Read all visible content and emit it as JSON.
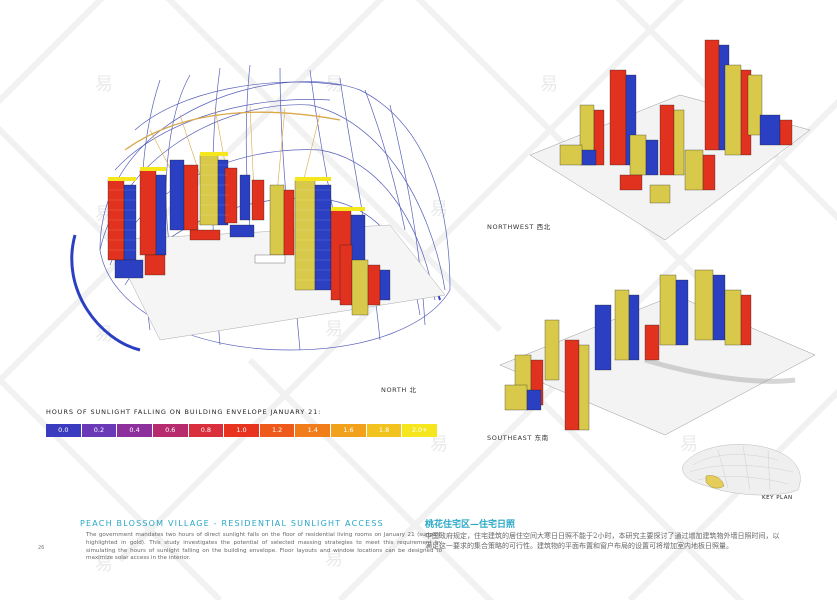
{
  "views": {
    "north": "NORTH 北",
    "northwest": "NORTHWEST 西北",
    "southeast": "SOUTHEAST 东南"
  },
  "legend": {
    "title": "HOURS OF SUNLIGHT FALLING ON BUILDING ENVELOPE JANUARY 21:",
    "steps": [
      {
        "label": "0.0",
        "color": "#3b3bbf"
      },
      {
        "label": "0.2",
        "color": "#6a39b8"
      },
      {
        "label": "0.4",
        "color": "#8e2f9e"
      },
      {
        "label": "0.6",
        "color": "#b62b6e"
      },
      {
        "label": "0.8",
        "color": "#d92e3c"
      },
      {
        "label": "1.0",
        "color": "#e8341e"
      },
      {
        "label": "1.2",
        "color": "#ee5a1b"
      },
      {
        "label": "1.4",
        "color": "#f07c1a"
      },
      {
        "label": "1.6",
        "color": "#f2a11c"
      },
      {
        "label": "1.8",
        "color": "#f2c21f"
      },
      {
        "label": "2.0+",
        "color": "#f5e61e"
      }
    ]
  },
  "text": {
    "page_number": "26",
    "section_title": "PEACH BLOSSOM VILLAGE - RESIDENTIAL SUNLIGHT ACCESS",
    "body_en": "The government mandates two hours of direct sunlight falls on the floor of residential living rooms on January 21 (sunpath highlighted in gold). This study investigates the potential of selected massing strategies to meet this requirement by simulating the hours of sunlight falling on the building envelope. Floor layouts and window locations can be designed to maximize solar access in the interior.",
    "cn_title": "桃花住宅区—住宅日照",
    "cn_body": "中国政府规定，住宅建筑的居住空间大寒日日照不能于2小时，本研究主要探讨了通过增加建筑物外墙日照时间，以满足这一要求的集合策略的可行性。建筑物的平面布置和窗户布局的设置可将增加室内地板日照量。",
    "key_plan": "KEY PLAN"
  },
  "colors": {
    "accent": "#29a8c7",
    "red": "#e0321e",
    "blue": "#2b3fc2",
    "yellow": "#d8c94a",
    "dome": "#5860b8",
    "sunpath": "#d9a84a"
  }
}
